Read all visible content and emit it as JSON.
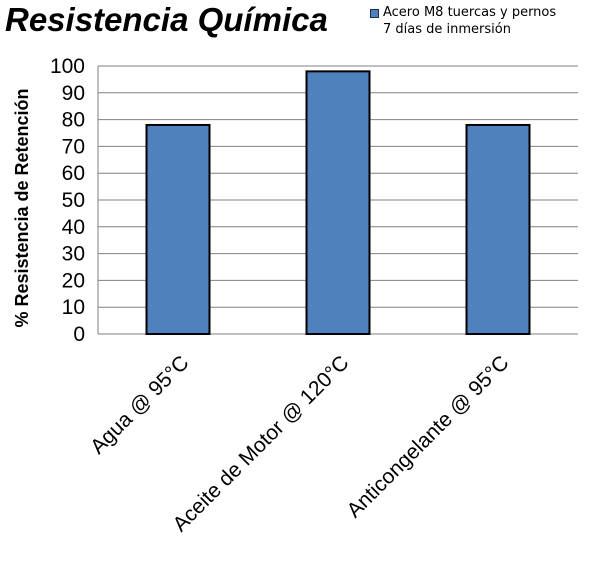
{
  "chart_data": {
    "type": "bar",
    "title": "Resistencia Química",
    "ylabel": "% Resistencia de Retención",
    "xlabel": "",
    "categories": [
      "Agua @ 95°C",
      "Aceite de Motor @ 120°C",
      "Anticongelante @ 95°C"
    ],
    "series": [
      {
        "name": "Acero M8 tuercas y pernos",
        "values": [
          78,
          98,
          78
        ]
      }
    ],
    "legend_lines": [
      "Acero M8 tuercas y pernos",
      "7 días de inmersión"
    ],
    "legend_position": "top-right",
    "ylim": [
      0,
      100
    ],
    "yticks": [
      0,
      10,
      20,
      30,
      40,
      50,
      60,
      70,
      80,
      90,
      100
    ],
    "grid": true,
    "bar_color": "#4f81bd",
    "bar_edge_color": "#000000",
    "grid_color": "#808080"
  }
}
